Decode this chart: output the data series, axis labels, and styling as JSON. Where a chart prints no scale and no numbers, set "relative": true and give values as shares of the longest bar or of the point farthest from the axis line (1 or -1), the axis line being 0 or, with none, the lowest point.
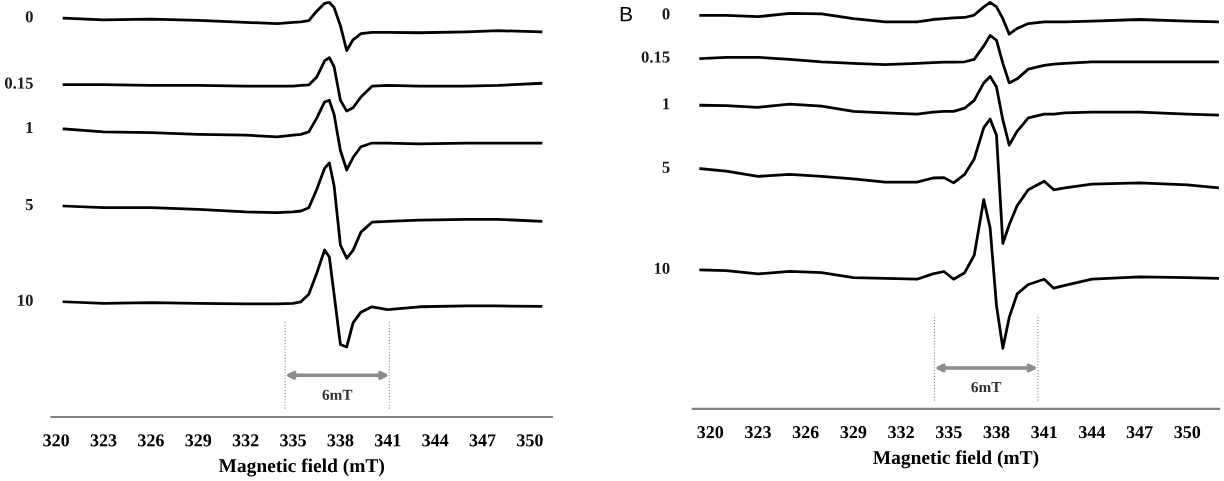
{
  "chart_data": [
    {
      "type": "line",
      "relative": true,
      "xlabel": "Magnetic field (mT)",
      "tick_labels": "x",
      "grid": false,
      "xlim": [
        319.7,
        351.4
      ],
      "xticks": [
        320,
        323,
        326,
        329,
        332,
        335,
        338,
        341,
        344,
        347,
        350
      ],
      "x": [
        320.5,
        323,
        326,
        329,
        332,
        334,
        335,
        335.5,
        336,
        336.5,
        337,
        337.3,
        337.6,
        338,
        338.4,
        338.8,
        339.3,
        340,
        341,
        343,
        346,
        348,
        350.7
      ],
      "ref_lines": [
        {
          "axis": "x",
          "value": 334.5,
          "color": "#8c8c8c",
          "line_style": "dotted"
        },
        {
          "axis": "x",
          "value": 341.1,
          "color": "#8c8c8c",
          "line_style": "dotted"
        }
      ],
      "annotations": [
        "6mT"
      ],
      "series": [
        {
          "name": "0",
          "color": "#000000",
          "values": [
            0.962,
            0.958,
            0.96,
            0.957,
            0.952,
            0.949,
            0.952,
            0.953,
            0.956,
            0.979,
            0.998,
            1.0,
            0.988,
            0.944,
            0.884,
            0.91,
            0.925,
            0.928,
            0.928,
            0.927,
            0.929,
            0.932,
            0.929
          ]
        },
        {
          "name": "0.15",
          "color": "#000000",
          "values": [
            0.802,
            0.802,
            0.8,
            0.8,
            0.798,
            0.798,
            0.798,
            0.8,
            0.801,
            0.82,
            0.859,
            0.867,
            0.845,
            0.764,
            0.738,
            0.746,
            0.772,
            0.798,
            0.8,
            0.798,
            0.798,
            0.8,
            0.805
          ]
        },
        {
          "name": "1",
          "color": "#000000",
          "values": [
            0.695,
            0.688,
            0.686,
            0.682,
            0.68,
            0.676,
            0.68,
            0.682,
            0.688,
            0.721,
            0.76,
            0.764,
            0.73,
            0.643,
            0.596,
            0.626,
            0.652,
            0.661,
            0.661,
            0.659,
            0.661,
            0.661,
            0.661
          ]
        },
        {
          "name": "5",
          "color": "#000000",
          "values": [
            0.509,
            0.505,
            0.505,
            0.501,
            0.495,
            0.493,
            0.495,
            0.497,
            0.505,
            0.549,
            0.6,
            0.613,
            0.558,
            0.415,
            0.383,
            0.402,
            0.446,
            0.47,
            0.472,
            0.475,
            0.477,
            0.477,
            0.472
          ]
        },
        {
          "name": "10",
          "color": "#000000",
          "values": [
            0.278,
            0.274,
            0.276,
            0.274,
            0.273,
            0.273,
            0.274,
            0.278,
            0.296,
            0.347,
            0.403,
            0.386,
            0.296,
            0.175,
            0.169,
            0.227,
            0.253,
            0.266,
            0.259,
            0.266,
            0.268,
            0.268,
            0.267
          ]
        }
      ]
    },
    {
      "type": "line",
      "relative": true,
      "title": "B",
      "xlabel": "Magnetic field (mT)",
      "tick_labels": "x",
      "grid": false,
      "xlim": [
        318.9,
        352.0
      ],
      "xticks": [
        320,
        323,
        326,
        329,
        332,
        335,
        338,
        341,
        344,
        347,
        350
      ],
      "x": [
        319.4,
        321,
        323,
        325,
        327,
        329,
        331,
        333,
        334,
        334.7,
        335.3,
        336,
        336.6,
        337.2,
        337.6,
        338,
        338.4,
        338.8,
        339.3,
        340,
        341,
        341.6,
        342.3,
        344,
        347,
        350,
        351.9
      ],
      "ref_lines": [
        {
          "axis": "x",
          "value": 334.1,
          "color": "#8c8c8c",
          "line_style": "dotted"
        },
        {
          "axis": "x",
          "value": 340.6,
          "color": "#8c8c8c",
          "line_style": "dotted"
        }
      ],
      "annotations": [
        "6mT"
      ],
      "series": [
        {
          "name": "0",
          "color": "#000000",
          "values": [
            0.968,
            0.968,
            0.965,
            0.973,
            0.972,
            0.96,
            0.952,
            0.952,
            0.958,
            0.96,
            0.962,
            0.963,
            0.969,
            0.989,
            1.0,
            0.989,
            0.96,
            0.922,
            0.936,
            0.948,
            0.952,
            0.952,
            0.952,
            0.954,
            0.958,
            0.954,
            0.952
          ]
        },
        {
          "name": "0.15",
          "color": "#000000",
          "values": [
            0.862,
            0.865,
            0.865,
            0.86,
            0.854,
            0.85,
            0.847,
            0.85,
            0.852,
            0.853,
            0.853,
            0.854,
            0.86,
            0.893,
            0.919,
            0.907,
            0.85,
            0.802,
            0.812,
            0.836,
            0.845,
            0.848,
            0.85,
            0.854,
            0.854,
            0.854,
            0.854
          ]
        },
        {
          "name": "1",
          "color": "#000000",
          "values": [
            0.747,
            0.746,
            0.742,
            0.75,
            0.745,
            0.732,
            0.728,
            0.725,
            0.73,
            0.732,
            0.732,
            0.74,
            0.759,
            0.802,
            0.818,
            0.792,
            0.711,
            0.649,
            0.683,
            0.716,
            0.725,
            0.725,
            0.728,
            0.73,
            0.73,
            0.725,
            0.723
          ]
        },
        {
          "name": "5",
          "color": "#000000",
          "values": [
            0.591,
            0.585,
            0.572,
            0.577,
            0.572,
            0.566,
            0.558,
            0.558,
            0.568,
            0.569,
            0.556,
            0.577,
            0.615,
            0.692,
            0.713,
            0.673,
            0.407,
            0.453,
            0.5,
            0.539,
            0.56,
            0.539,
            0.544,
            0.553,
            0.556,
            0.551,
            0.544
          ]
        },
        {
          "name": "10",
          "color": "#000000",
          "values": [
            0.342,
            0.34,
            0.332,
            0.338,
            0.335,
            0.323,
            0.321,
            0.319,
            0.332,
            0.338,
            0.319,
            0.335,
            0.378,
            0.515,
            0.445,
            0.254,
            0.149,
            0.225,
            0.283,
            0.306,
            0.319,
            0.297,
            0.304,
            0.319,
            0.325,
            0.323,
            0.321
          ]
        }
      ]
    }
  ]
}
